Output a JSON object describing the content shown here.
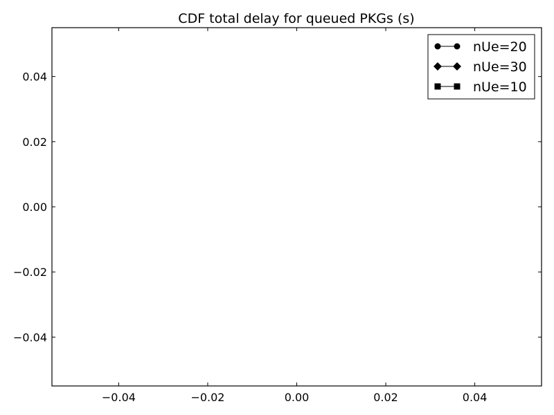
{
  "chart_data": {
    "type": "line",
    "title": "CDF total delay for queued PKGs (s)",
    "xlabel": "",
    "ylabel": "",
    "xlim": [
      -0.055,
      0.055
    ],
    "ylim": [
      -0.055,
      0.055
    ],
    "x_ticks": [
      -0.04,
      -0.02,
      0.0,
      0.02,
      0.04
    ],
    "y_ticks": [
      -0.04,
      -0.02,
      0.0,
      0.02,
      0.04
    ],
    "x_tick_labels": [
      "−0.04",
      "−0.02",
      "0.00",
      "0.02",
      "0.04"
    ],
    "y_tick_labels": [
      "−0.04",
      "−0.02",
      "0.00",
      "0.02",
      "0.04"
    ],
    "grid": false,
    "legend_position": "top-right",
    "series": [
      {
        "name": "nUe=20",
        "marker": "circle",
        "color": "#000000",
        "x": [],
        "y": []
      },
      {
        "name": "nUe=30",
        "marker": "diamond",
        "color": "#000000",
        "x": [],
        "y": []
      },
      {
        "name": "nUe=10",
        "marker": "square",
        "color": "#000000",
        "x": [],
        "y": []
      }
    ]
  }
}
